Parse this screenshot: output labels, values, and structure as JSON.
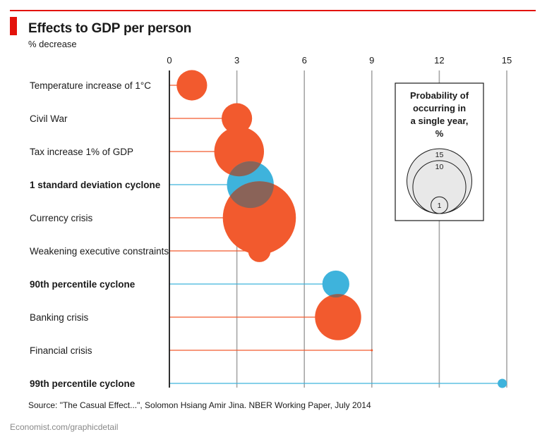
{
  "header": {
    "title": "Effects to GDP per person",
    "subtitle": "% decrease"
  },
  "chart_data": {
    "type": "scatter",
    "title": "Effects to GDP per person",
    "ylabel": "% decrease",
    "xlim": [
      0,
      15
    ],
    "x_ticks": [
      "0",
      "3",
      "6",
      "9",
      "12",
      "15"
    ],
    "grid": true,
    "colors": {
      "economic": "#f25a2e",
      "cyclone": "#3eb3dc",
      "overlap": "#8a6358"
    },
    "legend": {
      "title_lines": [
        "Probability of",
        "occurring in",
        "a single year,",
        "%"
      ],
      "sizes": [
        15,
        10,
        1
      ],
      "placement": "top-right"
    },
    "points": [
      {
        "label": "Temperature increase of 1°C",
        "value": 1.0,
        "probability": 3.3,
        "kind": "economic",
        "bold": false
      },
      {
        "label": "Civil War",
        "value": 3.0,
        "probability": 3.3,
        "kind": "economic",
        "bold": false
      },
      {
        "label": "Tax increase 1% of GDP",
        "value": 3.1,
        "probability": 8.8,
        "kind": "economic",
        "bold": false
      },
      {
        "label": "1 standard deviation cyclone",
        "value": 3.6,
        "probability": 7.8,
        "kind": "cyclone",
        "bold": true
      },
      {
        "label": "Currency crisis",
        "value": 4.0,
        "probability": 19.0,
        "kind": "economic",
        "bold": false
      },
      {
        "label": "Weakening executive constraints",
        "value": 4.0,
        "probability": 1.8,
        "kind": "economic",
        "bold": false
      },
      {
        "label": "90th percentile cyclone",
        "value": 7.4,
        "probability": 2.6,
        "kind": "cyclone",
        "bold": true
      },
      {
        "label": "Banking crisis",
        "value": 7.5,
        "probability": 7.6,
        "kind": "economic",
        "bold": false
      },
      {
        "label": "Financial crisis",
        "value": 9.0,
        "probability": 0.01,
        "kind": "economic",
        "bold": false
      },
      {
        "label": "99th percentile cyclone",
        "value": 14.8,
        "probability": 0.3,
        "kind": "cyclone",
        "bold": true
      }
    ]
  },
  "footer": {
    "source": "Source: \"The Casual Effect...\", Solomon Hsiang Amir Jina. NBER Working Paper, July 2014",
    "credit": "Economist.com/graphicdetail"
  }
}
